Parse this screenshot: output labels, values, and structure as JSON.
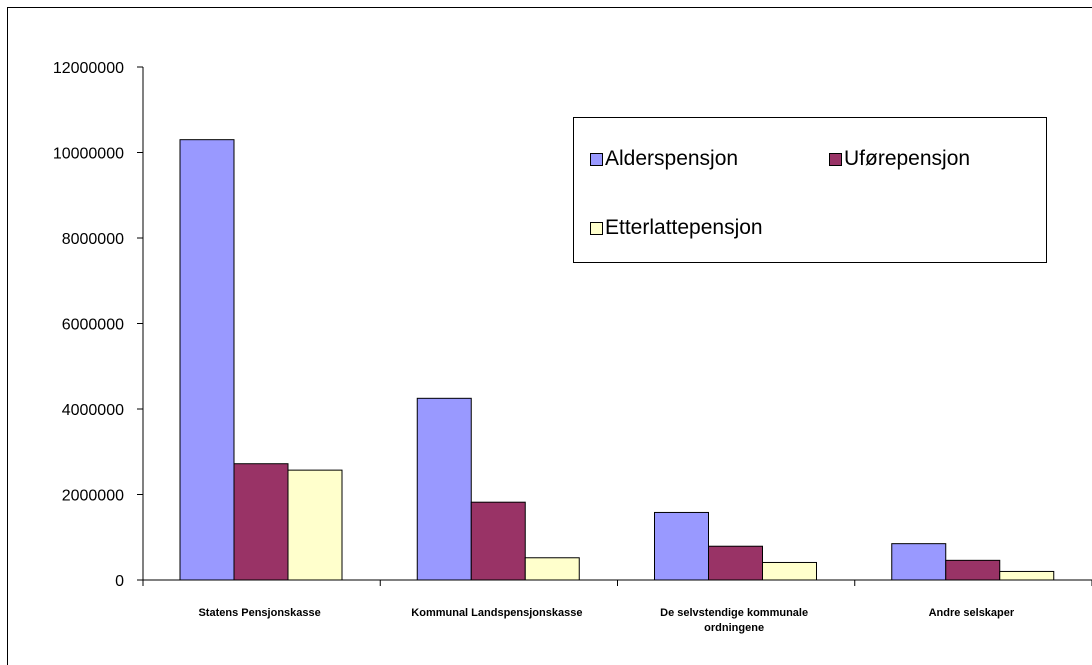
{
  "chart_data": {
    "type": "bar",
    "title": "",
    "xlabel": "",
    "ylabel": "",
    "categories": [
      "Statens Pensjonskasse",
      "Kommunal Landspensjonskasse",
      "De selvstendige kommunale ordningene",
      "Andre selskaper"
    ],
    "category_lines": [
      [
        "Statens Pensjonskasse"
      ],
      [
        "Kommunal Landspensjonskasse"
      ],
      [
        "De selvstendige kommunale",
        "ordningene"
      ],
      [
        "Andre selskaper"
      ]
    ],
    "series": [
      {
        "name": "Alderspensjon",
        "color": "#9999ff",
        "values": [
          10300000,
          4250000,
          1580000,
          850000
        ]
      },
      {
        "name": "Uførepensjon",
        "color": "#993366",
        "values": [
          2720000,
          1820000,
          790000,
          460000
        ]
      },
      {
        "name": "Etterlattepensjon",
        "color": "#ffffcc",
        "values": [
          2570000,
          520000,
          410000,
          200000
        ]
      }
    ],
    "ylim": [
      0,
      12000000
    ],
    "yticks": [
      "0",
      "2000000",
      "4000000",
      "6000000",
      "8000000",
      "10000000",
      "12000000"
    ],
    "ytick_values": [
      0,
      2000000,
      4000000,
      6000000,
      8000000,
      10000000,
      12000000
    ],
    "grid": false,
    "legend_position": "top-right"
  }
}
